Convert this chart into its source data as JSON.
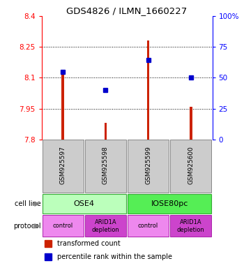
{
  "title": "GDS4826 / ILMN_1660227",
  "samples": [
    "GSM925597",
    "GSM925598",
    "GSM925599",
    "GSM925600"
  ],
  "red_values": [
    8.12,
    7.88,
    8.28,
    7.96
  ],
  "blue_values": [
    8.13,
    8.04,
    8.185,
    8.1
  ],
  "ylim_left": [
    7.8,
    8.4
  ],
  "ylim_right": [
    0,
    100
  ],
  "yticks_left": [
    7.8,
    7.95,
    8.1,
    8.25,
    8.4
  ],
  "ytick_labels_left": [
    "7.8",
    "7.95",
    "8.1",
    "8.25",
    "8.4"
  ],
  "yticks_right": [
    0,
    25,
    50,
    75,
    100
  ],
  "ytick_labels_right": [
    "0",
    "25",
    "50",
    "75",
    "100%"
  ],
  "cell_line_labels": [
    "OSE4",
    "IOSE80pc"
  ],
  "cell_line_colors": [
    "#bbffbb",
    "#55ee55"
  ],
  "protocol_colors_light": "#ee88ee",
  "protocol_colors_dark": "#cc44cc",
  "bar_color": "#cc2200",
  "dot_color": "#0000cc",
  "sample_box_color": "#cccccc",
  "background_color": "#ffffff",
  "bar_width": 0.06,
  "figwidth": 3.5,
  "figheight": 3.84,
  "dpi": 100
}
